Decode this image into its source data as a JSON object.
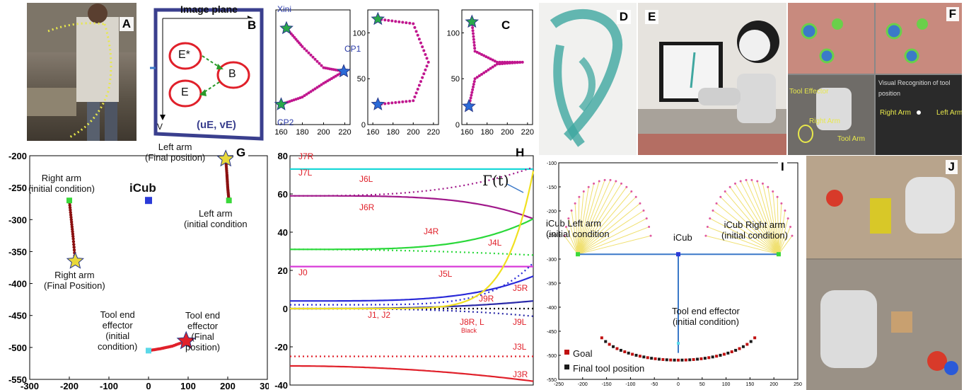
{
  "panels": {
    "A": "A",
    "B": "B",
    "C": "C",
    "D": "D",
    "E": "E",
    "F": "F",
    "G": "G",
    "H": "H",
    "I": "I",
    "J": "J"
  },
  "diagram_b": {
    "title": "Image plane",
    "axis_u": "U",
    "axis_v": "V",
    "node_e_star": "E*",
    "node_b": "B",
    "node_e": "E",
    "coords": "(uE, vE)"
  },
  "panel_c": {
    "x_ini": "Xini",
    "cp1": "CP1",
    "cp2": "CP2"
  },
  "photo_f": {
    "tool_effector": "Tool Effector",
    "right_arm": "Right Arm",
    "tool_arm": "Tool Arm",
    "visual_recognition": "Visual Recognition of tool position",
    "right_arm_2": "Right Arm",
    "left_arm": "Left Arm"
  },
  "panel_g": {
    "left_final": "Left arm\n(Final position)",
    "right_initial": "Right arm\n(initial condition)",
    "icub": "iCub",
    "left_initial": "Left arm\n(initial condition",
    "right_final": "Right arm\n(Final Position)",
    "tool_initial": "Tool end\neffector\n(initial\ncondition)",
    "tool_final": "Tool end\neffector\n(Final\nposition)"
  },
  "panel_h": {
    "gamma": "Γ(t)",
    "labels": [
      "J7R",
      "J7L",
      "J6L",
      "J6R",
      "J4R",
      "J4L",
      "J0",
      "J5L",
      "J5R",
      "J9R",
      "J1, J2",
      "J8R, L",
      "Black",
      "J9L",
      "J3L",
      "J3R"
    ]
  },
  "panel_i": {
    "left_initial": "iCub Left arm\n(initial condition",
    "icub": "iCub",
    "right_initial": "iCub Right arm\n(initial condition)",
    "tool_initial": "Tool end effector\n(initial condition)",
    "legend_goal": "Goal",
    "legend_final": "Final tool position"
  },
  "chart_data": [
    {
      "type": "line",
      "panel": "C",
      "series": [
        {
          "x": [
            165,
            180,
            200,
            219
          ],
          "y": [
            105,
            85,
            62,
            58
          ]
        },
        {
          "x": [
            160,
            180,
            200,
            219
          ],
          "y": [
            22,
            30,
            45,
            58
          ]
        }
      ],
      "xticks": [
        160,
        180,
        200,
        220
      ],
      "xlim": [
        155,
        225
      ]
    },
    {
      "type": "line",
      "panel": "C",
      "series": [
        {
          "x": [
            165,
            200,
            215,
            200,
            165
          ],
          "y": [
            115,
            110,
            68,
            26,
            22
          ]
        }
      ],
      "xticks": [
        160,
        180,
        200,
        220
      ],
      "yticks": [
        0,
        50,
        100
      ],
      "xlim": [
        155,
        225
      ],
      "ylim": [
        0,
        125
      ]
    },
    {
      "type": "line",
      "panel": "C",
      "series": [
        {
          "x": [
            165,
            168,
            190,
            215,
            190,
            168,
            162
          ],
          "y": [
            112,
            80,
            68,
            68,
            66,
            50,
            20
          ]
        }
      ],
      "xticks": [
        160,
        180,
        200,
        220
      ],
      "yticks": [
        0,
        50,
        100
      ],
      "xlim": [
        155,
        225
      ],
      "ylim": [
        0,
        125
      ]
    },
    {
      "type": "scatter",
      "panel": "G",
      "xticks": [
        -300,
        -200,
        -100,
        0,
        100,
        200,
        300
      ],
      "yticks": [
        -200,
        -250,
        -300,
        -350,
        -400,
        -450,
        -500,
        -550
      ],
      "xlim": [
        -300,
        300
      ],
      "ylim": [
        -550,
        -200
      ],
      "series": [
        {
          "name": "Right arm",
          "x": [
            -200,
            -195,
            -190,
            -185
          ],
          "y": [
            -270,
            -300,
            -330,
            -365
          ]
        },
        {
          "name": "Left arm",
          "x": [
            195,
            198,
            200,
            203
          ],
          "y": [
            -205,
            -230,
            -250,
            -270
          ]
        },
        {
          "name": "Tool end effector",
          "x": [
            0,
            30,
            60,
            95
          ],
          "y": [
            -505,
            -502,
            -498,
            -490
          ]
        }
      ],
      "points": {
        "iCub": [
          0,
          -270
        ]
      }
    },
    {
      "type": "line",
      "panel": "H",
      "yticks": [
        80,
        60,
        40,
        20,
        0,
        -20,
        -40
      ],
      "ylim": [
        -40,
        80
      ],
      "xlim": [
        0,
        1000
      ]
    },
    {
      "type": "scatter",
      "panel": "I",
      "xticks": [
        -250,
        -200,
        -150,
        -100,
        -50,
        0,
        50,
        100,
        150,
        200,
        250
      ],
      "yticks": [
        -100,
        -150,
        -200,
        -250,
        -300,
        -350,
        -400,
        -450,
        -500,
        -550
      ],
      "xlim": [
        -250,
        250
      ],
      "ylim": [
        -550,
        -100
      ]
    }
  ]
}
